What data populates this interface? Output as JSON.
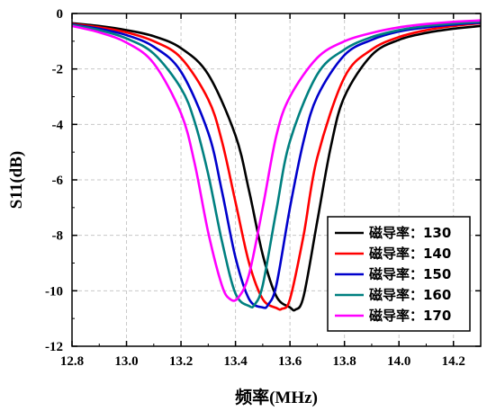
{
  "chart_data": {
    "type": "line",
    "xlabel": "频率(MHz)",
    "ylabel": "S11(dB)",
    "xlim": [
      12.8,
      14.3
    ],
    "ylim": [
      -12,
      0
    ],
    "xticks": [
      12.8,
      13.0,
      13.2,
      13.4,
      13.6,
      13.8,
      14.0,
      14.2
    ],
    "xtick_labels": [
      "12.8",
      "13.0",
      "13.2",
      "13.4",
      "13.6",
      "13.8",
      "14.0",
      "14.2"
    ],
    "yticks": [
      0,
      -2,
      -4,
      -6,
      -8,
      -10,
      -12
    ],
    "ytick_labels": [
      "0",
      "-2",
      "-4",
      "-6",
      "-8",
      "-10",
      "-12"
    ],
    "grid": true,
    "legend_position": "lower-right",
    "series": [
      {
        "name": "磁导率：130",
        "color": "#000000",
        "x": [
          12.8,
          12.9,
          13.0,
          13.1,
          13.2,
          13.3,
          13.4,
          13.45,
          13.5,
          13.55,
          13.6,
          13.62,
          13.65,
          13.7,
          13.75,
          13.8,
          13.9,
          14.0,
          14.1,
          14.2,
          14.3
        ],
        "y": [
          -0.35,
          -0.45,
          -0.6,
          -0.82,
          -1.25,
          -2.2,
          -4.4,
          -6.4,
          -8.7,
          -10.2,
          -10.6,
          -10.68,
          -10.2,
          -7.5,
          -4.8,
          -3.0,
          -1.5,
          -0.95,
          -0.7,
          -0.55,
          -0.45
        ]
      },
      {
        "name": "磁导率：140",
        "color": "#ff0000",
        "x": [
          12.8,
          12.9,
          13.0,
          13.1,
          13.2,
          13.3,
          13.35,
          13.4,
          13.45,
          13.5,
          13.55,
          13.57,
          13.6,
          13.65,
          13.7,
          13.8,
          13.9,
          14.0,
          14.1,
          14.2,
          14.3
        ],
        "y": [
          -0.38,
          -0.5,
          -0.68,
          -1.0,
          -1.6,
          -3.1,
          -4.6,
          -6.8,
          -9.0,
          -10.3,
          -10.62,
          -10.65,
          -10.3,
          -8.0,
          -5.2,
          -2.3,
          -1.3,
          -0.85,
          -0.6,
          -0.45,
          -0.35
        ]
      },
      {
        "name": "磁导率：150",
        "color": "#0000cc",
        "x": [
          12.8,
          12.9,
          13.0,
          13.1,
          13.2,
          13.3,
          13.35,
          13.4,
          13.45,
          13.5,
          13.52,
          13.55,
          13.6,
          13.65,
          13.7,
          13.8,
          13.9,
          14.0,
          14.1,
          14.2,
          14.3
        ],
        "y": [
          -0.4,
          -0.55,
          -0.78,
          -1.2,
          -2.1,
          -4.3,
          -6.4,
          -8.8,
          -10.3,
          -10.6,
          -10.5,
          -9.8,
          -7.0,
          -4.6,
          -3.0,
          -1.5,
          -0.95,
          -0.65,
          -0.5,
          -0.4,
          -0.33
        ]
      },
      {
        "name": "磁导率：160",
        "color": "#008080",
        "x": [
          12.8,
          12.9,
          13.0,
          13.1,
          13.2,
          13.25,
          13.3,
          13.35,
          13.4,
          13.45,
          13.47,
          13.5,
          13.55,
          13.6,
          13.7,
          13.8,
          13.9,
          14.0,
          14.1,
          14.2,
          14.3
        ],
        "y": [
          -0.42,
          -0.6,
          -0.9,
          -1.45,
          -2.7,
          -3.9,
          -5.8,
          -8.2,
          -10.1,
          -10.55,
          -10.5,
          -9.8,
          -7.1,
          -4.6,
          -2.2,
          -1.3,
          -0.85,
          -0.6,
          -0.45,
          -0.36,
          -0.3
        ]
      },
      {
        "name": "磁导率：170",
        "color": "#ff00ff",
        "x": [
          12.8,
          12.9,
          13.0,
          13.1,
          13.2,
          13.25,
          13.3,
          13.35,
          13.38,
          13.41,
          13.45,
          13.5,
          13.55,
          13.6,
          13.7,
          13.8,
          13.9,
          14.0,
          14.1,
          14.2,
          14.3
        ],
        "y": [
          -0.45,
          -0.68,
          -1.05,
          -1.8,
          -3.6,
          -5.4,
          -7.9,
          -9.8,
          -10.3,
          -10.25,
          -9.4,
          -7.0,
          -4.4,
          -3.0,
          -1.6,
          -1.0,
          -0.7,
          -0.5,
          -0.38,
          -0.3,
          -0.25
        ]
      }
    ]
  }
}
